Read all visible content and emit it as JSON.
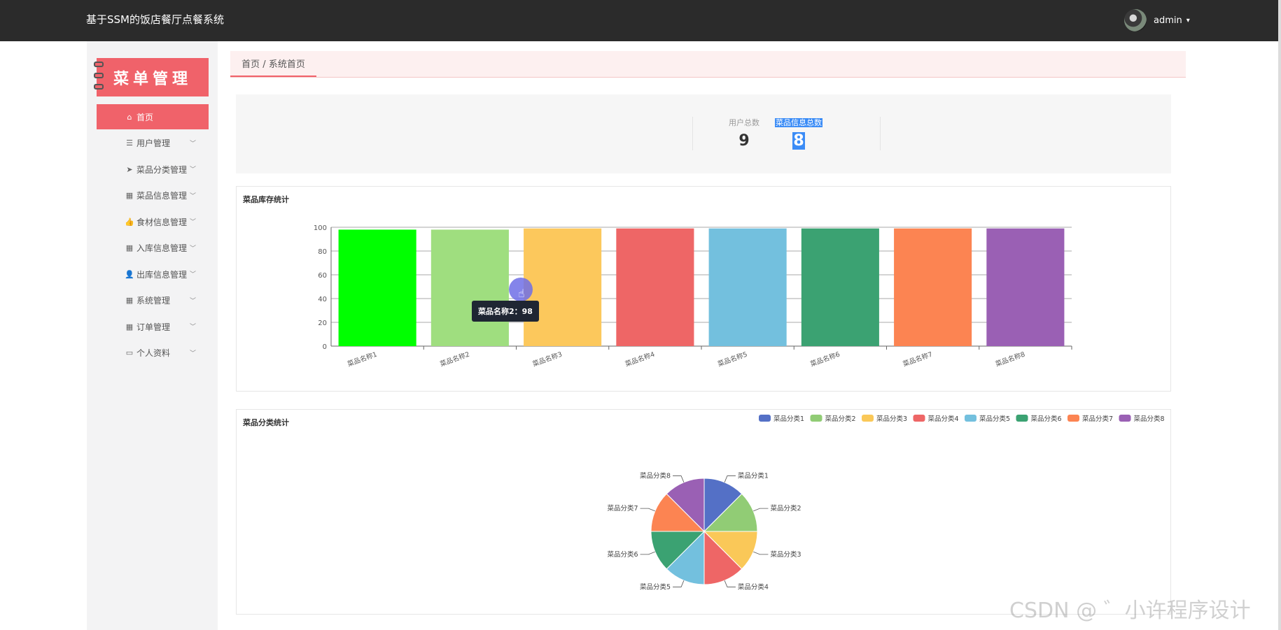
{
  "header": {
    "app_title": "基于SSM的饭店餐厅点餐系统",
    "user_name": "admin",
    "user_caret": "▾"
  },
  "sidebar": {
    "logo_text": "菜单管理",
    "items": [
      {
        "label": "首页",
        "icon": "home-icon",
        "glyph": "⌂",
        "active": true,
        "has_chevron": false
      },
      {
        "label": "用户管理",
        "icon": "sliders-icon",
        "glyph": "☰",
        "active": false,
        "has_chevron": true
      },
      {
        "label": "菜品分类管理",
        "icon": "paper-plane-icon",
        "glyph": "➤",
        "active": false,
        "has_chevron": true
      },
      {
        "label": "菜品信息管理",
        "icon": "grid-icon",
        "glyph": "▦",
        "active": false,
        "has_chevron": true
      },
      {
        "label": "食材信息管理",
        "icon": "thumbs-up-icon",
        "glyph": "👍",
        "active": false,
        "has_chevron": true
      },
      {
        "label": "入库信息管理",
        "icon": "grid-icon",
        "glyph": "▦",
        "active": false,
        "has_chevron": true
      },
      {
        "label": "出库信息管理",
        "icon": "user-icon",
        "glyph": "👤",
        "active": false,
        "has_chevron": true
      },
      {
        "label": "系统管理",
        "icon": "apps-icon",
        "glyph": "▦",
        "active": false,
        "has_chevron": true
      },
      {
        "label": "订单管理",
        "icon": "grid-icon",
        "glyph": "▦",
        "active": false,
        "has_chevron": true
      },
      {
        "label": "个人资料",
        "icon": "id-card-icon",
        "glyph": "▭",
        "active": false,
        "has_chevron": true
      }
    ],
    "chevron_glyph": "﹀"
  },
  "breadcrumb": {
    "text": "首页 / 系统首页"
  },
  "stats": [
    {
      "label": "用户总数",
      "value": "9",
      "highlighted": false
    },
    {
      "label": "菜品信息总数",
      "value": "8",
      "highlighted": true
    }
  ],
  "bar_card": {
    "title": "菜品库存统计"
  },
  "pie_card": {
    "title": "菜品分类统计"
  },
  "tooltip": {
    "text": "菜品名称2：98"
  },
  "watermark": "CSDN @ ゛小许程序设计",
  "chart_data": [
    {
      "type": "bar",
      "title": "菜品库存统计",
      "categories": [
        "菜品名称1",
        "菜品名称2",
        "菜品名称3",
        "菜品名称4",
        "菜品名称5",
        "菜品名称6",
        "菜品名称7",
        "菜品名称8"
      ],
      "values": [
        98,
        98,
        99,
        99,
        99,
        99,
        99,
        99
      ],
      "colors": [
        "#00ff00",
        "#9fde7f",
        "#fcc85c",
        "#ee6666",
        "#73c0de",
        "#3ba272",
        "#fc8452",
        "#9a60b4"
      ],
      "ylim": [
        0,
        100
      ],
      "yticks": [
        0,
        20,
        40,
        60,
        80,
        100
      ],
      "grid": true
    },
    {
      "type": "pie",
      "title": "菜品分类统计",
      "labels": [
        "菜品分类1",
        "菜品分类2",
        "菜品分类3",
        "菜品分类4",
        "菜品分类5",
        "菜品分类6",
        "菜品分类7",
        "菜品分类8"
      ],
      "values": [
        1,
        1,
        1,
        1,
        1,
        1,
        1,
        1
      ],
      "colors": [
        "#5470c6",
        "#91cc75",
        "#fac858",
        "#ee6666",
        "#73c0de",
        "#3ba272",
        "#fc8452",
        "#9a60b4"
      ],
      "legend": "top-right"
    }
  ]
}
